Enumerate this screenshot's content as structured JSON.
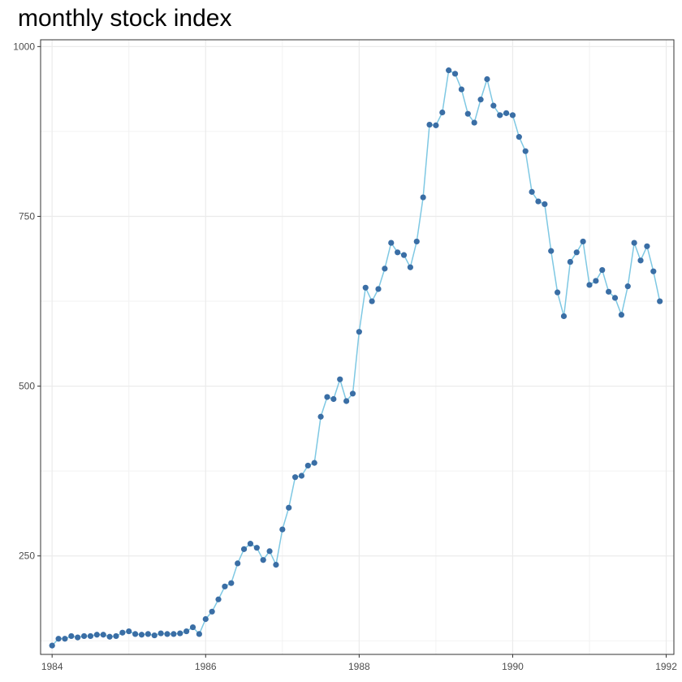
{
  "chart_data": {
    "type": "line",
    "title": "monthly stock index",
    "xlabel": "",
    "ylabel": "",
    "x_start_year": 1984,
    "x_step": "monthly",
    "xlim": [
      1983.85,
      1992.1
    ],
    "ylim": [
      105,
      1010
    ],
    "x_ticks": [
      1984,
      1986,
      1988,
      1990,
      1992
    ],
    "x_tick_labels": [
      "1984",
      "1986",
      "1988",
      "1990",
      "1992"
    ],
    "y_ticks": [
      250,
      500,
      750,
      1000
    ],
    "y_tick_labels": [
      "250",
      "500",
      "750",
      "1000"
    ],
    "y_minor_ticks": [
      125,
      375,
      625,
      875
    ],
    "grid": true,
    "series": [
      {
        "line_color": "#7ec8e3",
        "point_color": "#3a6ea5",
        "values": [
          118,
          128,
          128,
          132,
          130,
          132,
          132,
          134,
          134,
          131,
          132,
          137,
          139,
          135,
          134,
          135,
          133,
          136,
          135,
          135,
          136,
          139,
          145,
          135,
          157,
          168,
          186,
          205,
          210,
          239,
          260,
          268,
          262,
          244,
          257,
          237,
          289,
          321,
          366,
          368,
          383,
          387,
          455,
          484,
          481,
          510,
          478,
          489,
          580,
          645,
          625,
          643,
          673,
          711,
          697,
          693,
          675,
          713,
          778,
          885,
          884,
          903,
          965,
          960,
          937,
          901,
          888,
          922,
          952,
          913,
          899,
          902,
          899,
          867,
          846,
          786,
          772,
          768,
          699,
          638,
          603,
          683,
          697,
          713,
          649,
          655,
          671,
          639,
          630,
          605,
          647,
          711,
          685,
          706,
          669,
          625
        ]
      }
    ]
  }
}
